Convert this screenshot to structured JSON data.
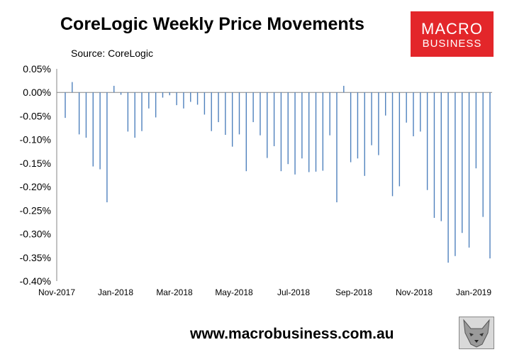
{
  "header": {
    "title": "CoreLogic Weekly Price Movements",
    "source": "Source: CoreLogic"
  },
  "logo": {
    "line1": "MACRO",
    "line2": "BUSINESS"
  },
  "footer": {
    "url": "www.macrobusiness.com.au"
  },
  "chart_data": {
    "type": "bar",
    "title": "CoreLogic Weekly Price Movements",
    "subtitle": "Source: CoreLogic",
    "xlabel": "",
    "ylabel": "",
    "ylim": [
      -0.4,
      0.05
    ],
    "yticks": [
      "0.05%",
      "0.00%",
      "-0.05%",
      "-0.10%",
      "-0.15%",
      "-0.20%",
      "-0.25%",
      "-0.30%",
      "-0.35%",
      "-0.40%"
    ],
    "ytick_values": [
      0.05,
      0.0,
      -0.05,
      -0.1,
      -0.15,
      -0.2,
      -0.25,
      -0.3,
      -0.35,
      -0.4
    ],
    "xticks": [
      "Nov-2017",
      "Jan-2018",
      "Mar-2018",
      "May-2018",
      "Jul-2018",
      "Sep-2018",
      "Nov-2018",
      "Jan-2019"
    ],
    "grid": false,
    "bar_color": "#4f81bd",
    "series": [
      {
        "values": [
          -0.054,
          0.022,
          -0.089,
          -0.096,
          -0.157,
          -0.163,
          -0.233,
          0.014,
          -0.005,
          -0.083,
          -0.096,
          -0.082,
          -0.034,
          -0.053,
          -0.011,
          -0.006,
          -0.027,
          -0.034,
          -0.02,
          -0.026,
          -0.047,
          -0.082,
          -0.063,
          -0.09,
          -0.115,
          -0.089,
          -0.167,
          -0.063,
          -0.091,
          -0.139,
          -0.114,
          -0.167,
          -0.152,
          -0.174,
          -0.14,
          -0.169,
          -0.168,
          -0.166,
          -0.091,
          -0.233,
          0.014,
          -0.148,
          -0.14,
          -0.177,
          -0.112,
          -0.133,
          -0.049,
          -0.22,
          -0.199,
          -0.064,
          -0.093,
          -0.083,
          -0.207,
          -0.266,
          -0.273,
          -0.361,
          -0.347,
          -0.298,
          -0.329,
          -0.161,
          -0.264,
          -0.352
        ]
      }
    ]
  }
}
